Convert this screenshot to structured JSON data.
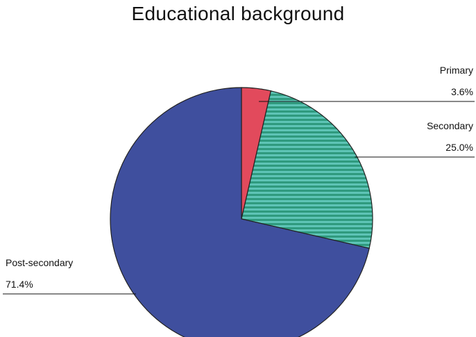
{
  "chart_data": {
    "type": "pie",
    "title": "Educational background",
    "slices": [
      {
        "label": "Primary",
        "value": 3.6,
        "value_label": "3.6%",
        "color": "#e24a5c"
      },
      {
        "label": "Secondary",
        "value": 25.0,
        "value_label": "25.0%",
        "color": "#2f9a7e",
        "pattern": "horizontal-stripes",
        "pattern_color": "#5ec4b6"
      },
      {
        "label": "Post-secondary",
        "value": 71.4,
        "value_label": "71.4%",
        "color": "#3f4f9e"
      }
    ],
    "start_angle": "12 o'clock",
    "direction": "clockwise",
    "legend": "none",
    "label_style": "leader-lines"
  }
}
